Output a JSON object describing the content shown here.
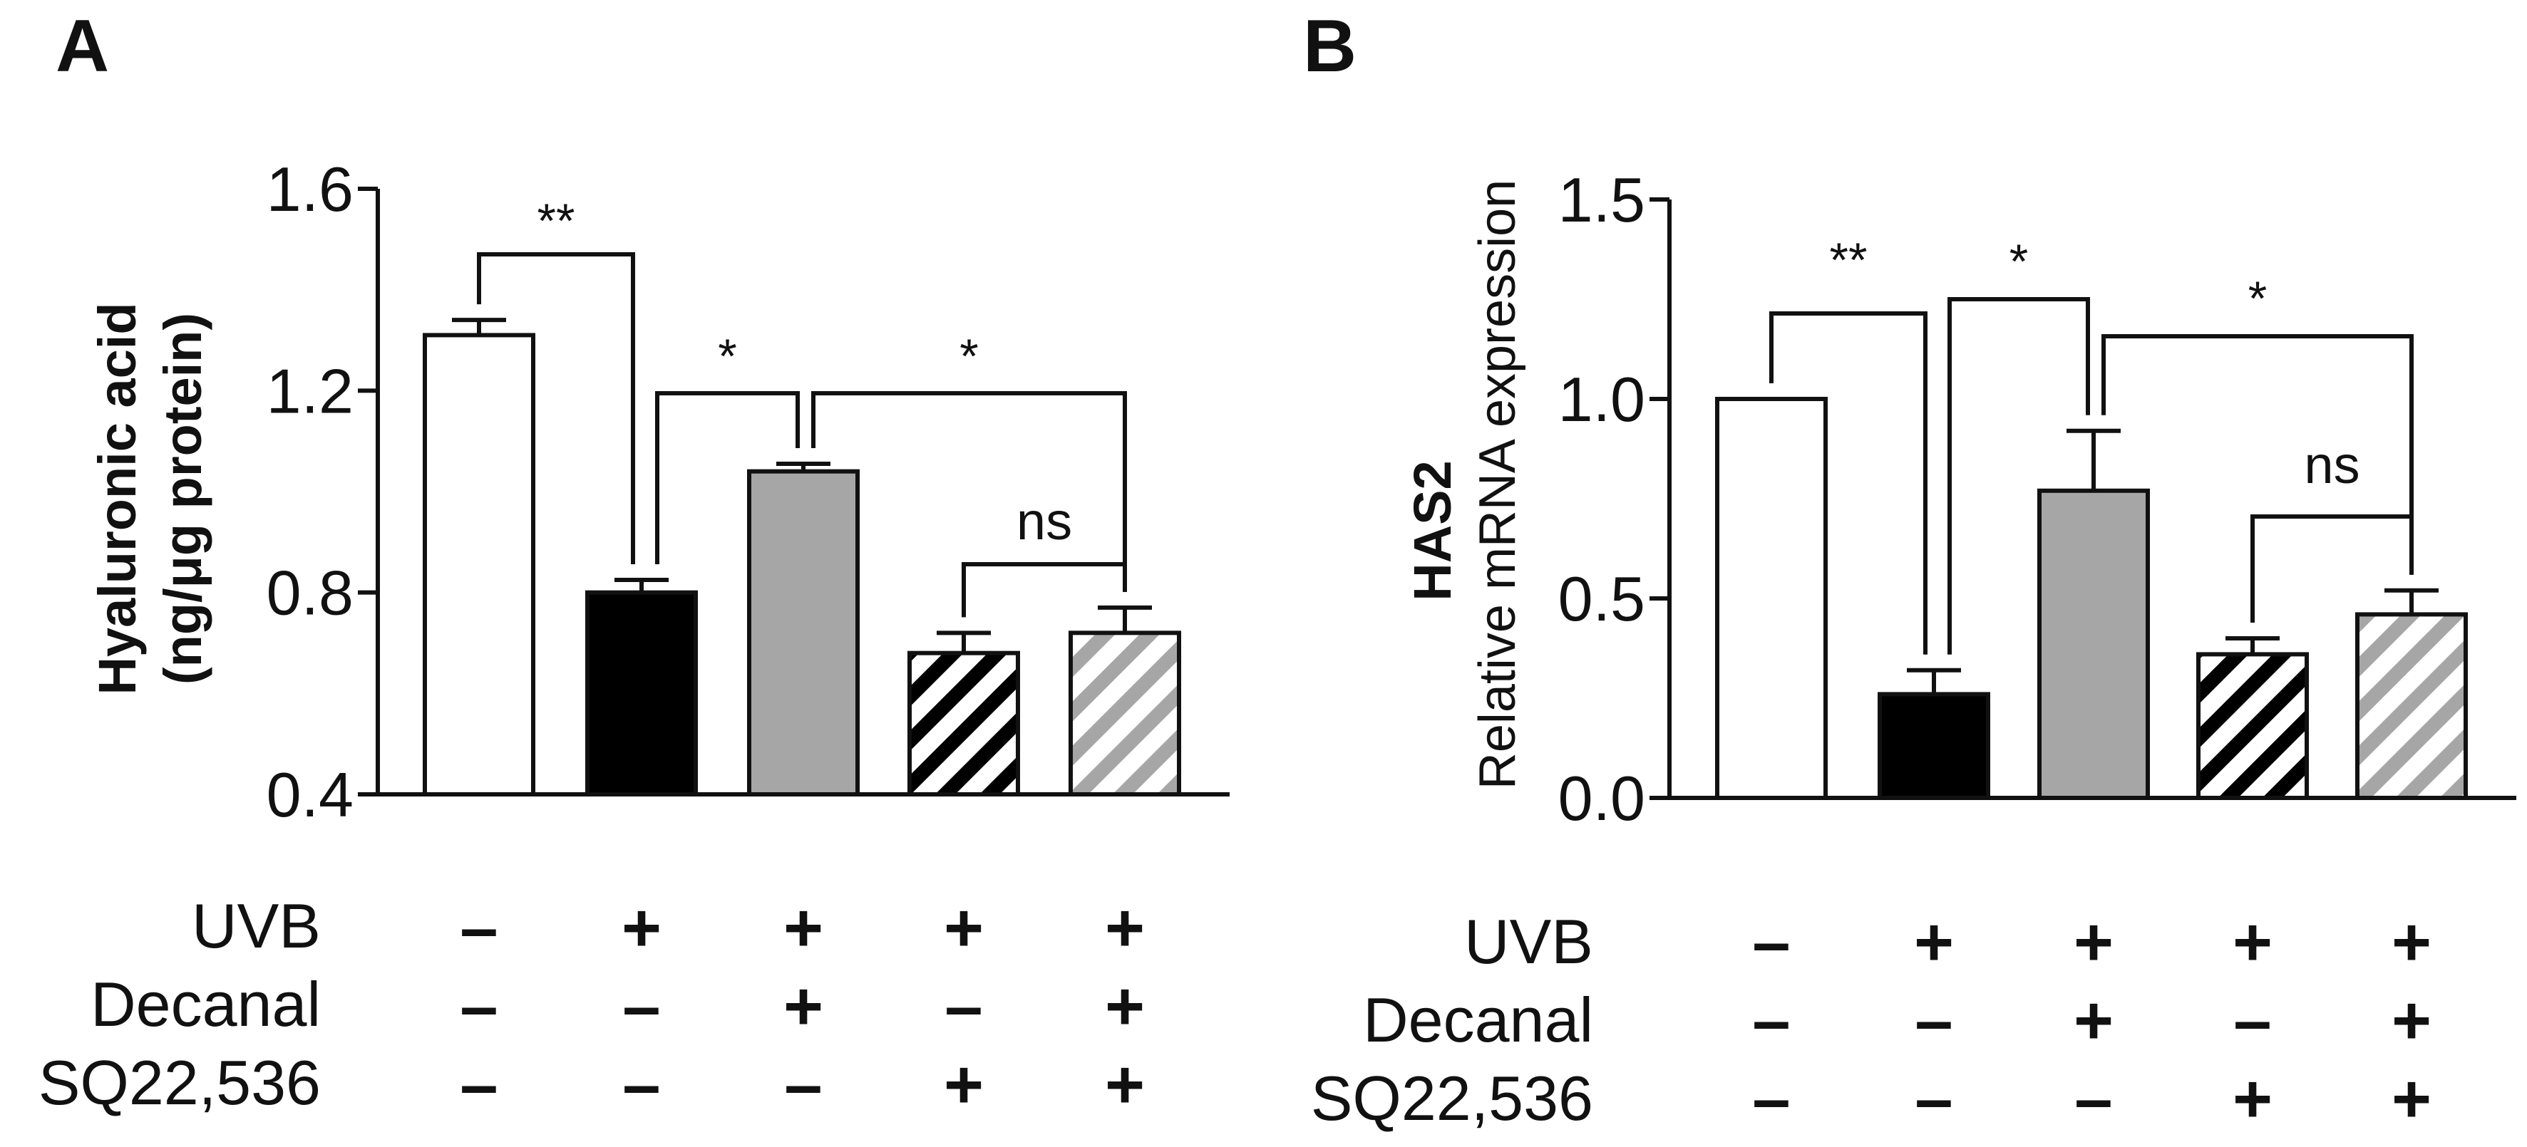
{
  "panels": {
    "A": {
      "letter": "A"
    },
    "B": {
      "letter": "B"
    }
  },
  "legend": {
    "row_labels": [
      "UVB",
      "Decanal",
      "SQ22,536"
    ],
    "signs": [
      [
        "-",
        "+",
        "+",
        "+",
        "+"
      ],
      [
        "-",
        "-",
        "+",
        "-",
        "+"
      ],
      [
        "-",
        "-",
        "-",
        "+",
        "+"
      ]
    ]
  },
  "colors": {
    "white_bar": "#ffffff",
    "black_bar": "#000000",
    "gray_bar": "#a6a6a6",
    "stripe_gray": "#a6a6a6",
    "ink": "#111111"
  },
  "chart_data": [
    {
      "type": "bar",
      "panel": "A",
      "title": "",
      "ylabel_line1": "Hyaluronic acid",
      "ylabel_line2": "(ng/μg protein)",
      "ylim": [
        0.4,
        1.6
      ],
      "yticks": [
        0.4,
        0.8,
        1.2,
        1.6
      ],
      "ytick_labels": [
        "0.4",
        "0.8",
        "1.2",
        "1.6"
      ],
      "categories": [
        "UVB-",
        "UVB+",
        "UVB+Decanal",
        "UVB+SQ22,536",
        "UVB+Decanal+SQ22,536"
      ],
      "values": [
        1.31,
        0.8,
        1.04,
        0.68,
        0.72
      ],
      "errors": [
        0.03,
        0.025,
        0.015,
        0.04,
        0.05
      ],
      "fills": [
        "white",
        "black",
        "gray",
        "black-stripes",
        "gray-stripes"
      ],
      "comparisons": [
        {
          "from": 0,
          "to": 1,
          "label": "**"
        },
        {
          "from": 1,
          "to": 2,
          "label": "*"
        },
        {
          "from": 2,
          "to": 4,
          "label": "*"
        },
        {
          "from": 3,
          "to": 4,
          "label": "ns"
        }
      ]
    },
    {
      "type": "bar",
      "panel": "B",
      "title": "",
      "ylabel_line1": "HAS2",
      "ylabel_line2": "Relative mRNA expression",
      "ylim": [
        0.0,
        1.5
      ],
      "yticks": [
        0.0,
        0.5,
        1.0,
        1.5
      ],
      "ytick_labels": [
        "0.0",
        "0.5",
        "1.0",
        "1.5"
      ],
      "categories": [
        "UVB-",
        "UVB+",
        "UVB+Decanal",
        "UVB+SQ22,536",
        "UVB+Decanal+SQ22,536"
      ],
      "values": [
        1.0,
        0.26,
        0.77,
        0.36,
        0.46
      ],
      "errors": [
        0.0,
        0.06,
        0.15,
        0.04,
        0.06
      ],
      "fills": [
        "white",
        "black",
        "gray",
        "black-stripes",
        "gray-stripes"
      ],
      "comparisons": [
        {
          "from": 0,
          "to": 1,
          "label": "**"
        },
        {
          "from": 1,
          "to": 2,
          "label": "*"
        },
        {
          "from": 2,
          "to": 4,
          "label": "*"
        },
        {
          "from": 3,
          "to": 4,
          "label": "ns"
        }
      ]
    }
  ]
}
